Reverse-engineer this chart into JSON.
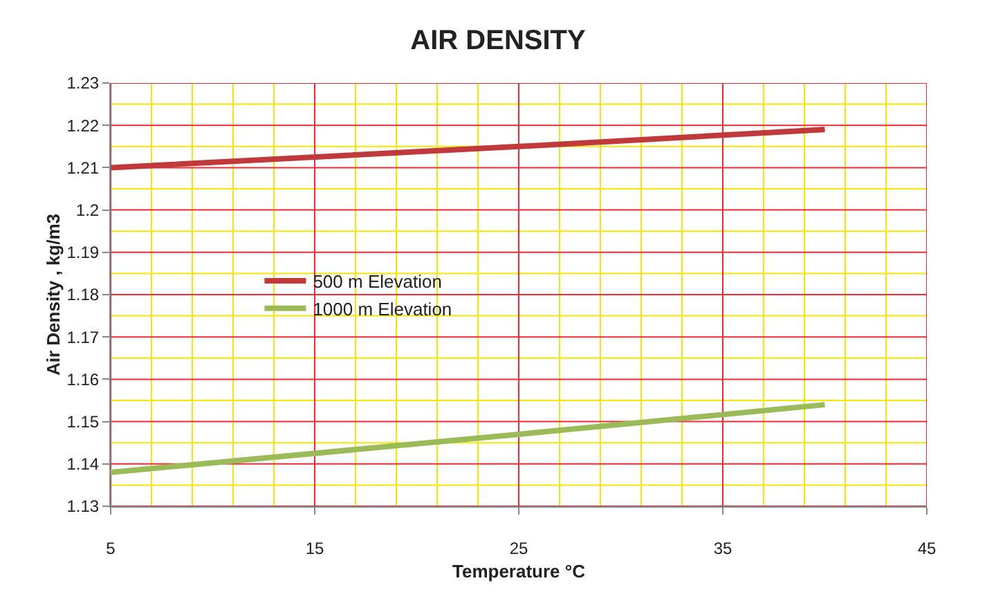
{
  "chart_data": {
    "type": "line",
    "title": "AIR DENSITY",
    "xlabel": "Temperature °C",
    "ylabel": "Air Density , kg/m3",
    "xlim": [
      5,
      45
    ],
    "xticks": [
      5,
      {
        "value": 7,
        "label": null
      },
      {
        "value": 9,
        "label": null
      },
      {
        "value": 11,
        "label": null
      },
      {
        "value": 13,
        "label": null
      },
      15,
      {
        "value": 17,
        "label": null
      },
      {
        "value": 19,
        "label": null
      },
      {
        "value": 21,
        "label": null
      },
      {
        "value": 23,
        "label": null
      },
      25,
      {
        "value": 27,
        "label": null
      },
      {
        "value": 29,
        "label": null
      },
      {
        "value": 31,
        "label": null
      },
      {
        "value": 33,
        "label": null
      },
      35,
      {
        "value": 37,
        "label": null
      },
      {
        "value": 39,
        "label": null
      },
      {
        "value": 41,
        "label": null
      },
      {
        "value": 43,
        "label": null
      },
      45
    ],
    "ylim": [
      1.13,
      1.23
    ],
    "yticks": [
      1.13,
      {
        "value": 1.135,
        "label": null
      },
      1.14,
      {
        "value": 1.145,
        "label": null
      },
      1.15,
      {
        "value": 1.155,
        "label": null
      },
      1.16,
      {
        "value": 1.165,
        "label": null
      },
      1.17,
      {
        "value": 1.175,
        "label": null
      },
      1.18,
      {
        "value": 1.185,
        "label": null
      },
      1.19,
      {
        "value": 1.195,
        "label": null
      },
      {
        "value": 1.2,
        "label": "1.2"
      },
      {
        "value": 1.205,
        "label": null
      },
      1.21,
      {
        "value": 1.215,
        "label": null
      },
      1.22,
      {
        "value": 1.225,
        "label": null
      },
      1.23
    ],
    "x": [
      5,
      25,
      40
    ],
    "series": [
      {
        "name": "500 m Elevation",
        "color": "#c0393b",
        "values": [
          1.21,
          1.215,
          1.219
        ]
      },
      {
        "name": "1000 m Elevation",
        "color": "#9bbb59",
        "values": [
          1.138,
          1.147,
          1.154
        ]
      }
    ],
    "grid": true,
    "legend": "left",
    "marker": "none",
    "line_style": "solid"
  }
}
